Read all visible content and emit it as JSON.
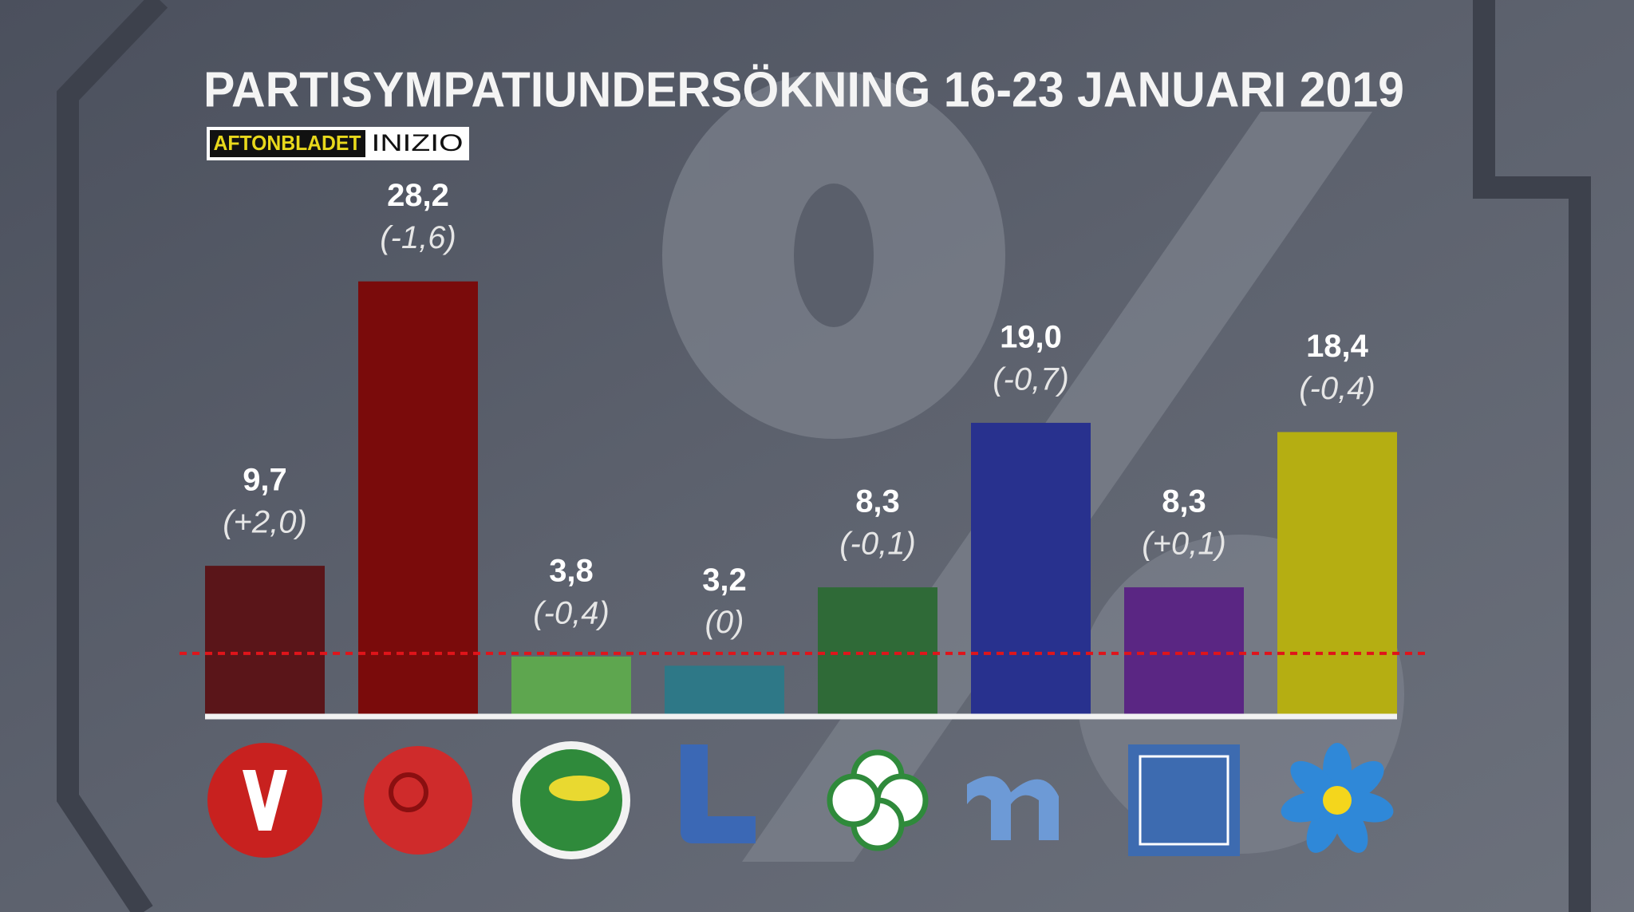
{
  "chart_data": {
    "type": "bar",
    "title": "PARTISYMPATIUNDERSÖKNING 16-23 JANUARI 2019",
    "source": [
      "AFTONBLADET",
      "INIZIO"
    ],
    "categories": [
      null,
      null,
      null,
      null,
      null,
      null,
      null,
      null
    ],
    "values": [
      9.7,
      28.2,
      3.8,
      3.2,
      8.3,
      19.0,
      8.3,
      18.4
    ],
    "value_labels": [
      "9,7",
      "28,2",
      "3,8",
      "3,2",
      "8,3",
      "19,0",
      "8,3",
      "18,4"
    ],
    "change_labels": [
      "(+2,0)",
      "(-1,6)",
      "(-0,4)",
      "(0)",
      "(-0,1)",
      "(-0,7)",
      "(+0,1)",
      "(-0,4)"
    ],
    "colors": [
      "#5a1519",
      "#7a0b0b",
      "#5ea64f",
      "#2e7887",
      "#2f6a37",
      "#28318e",
      "#5a2683",
      "#b5ae12"
    ],
    "threshold": 4,
    "ylim": [
      0,
      30
    ]
  }
}
